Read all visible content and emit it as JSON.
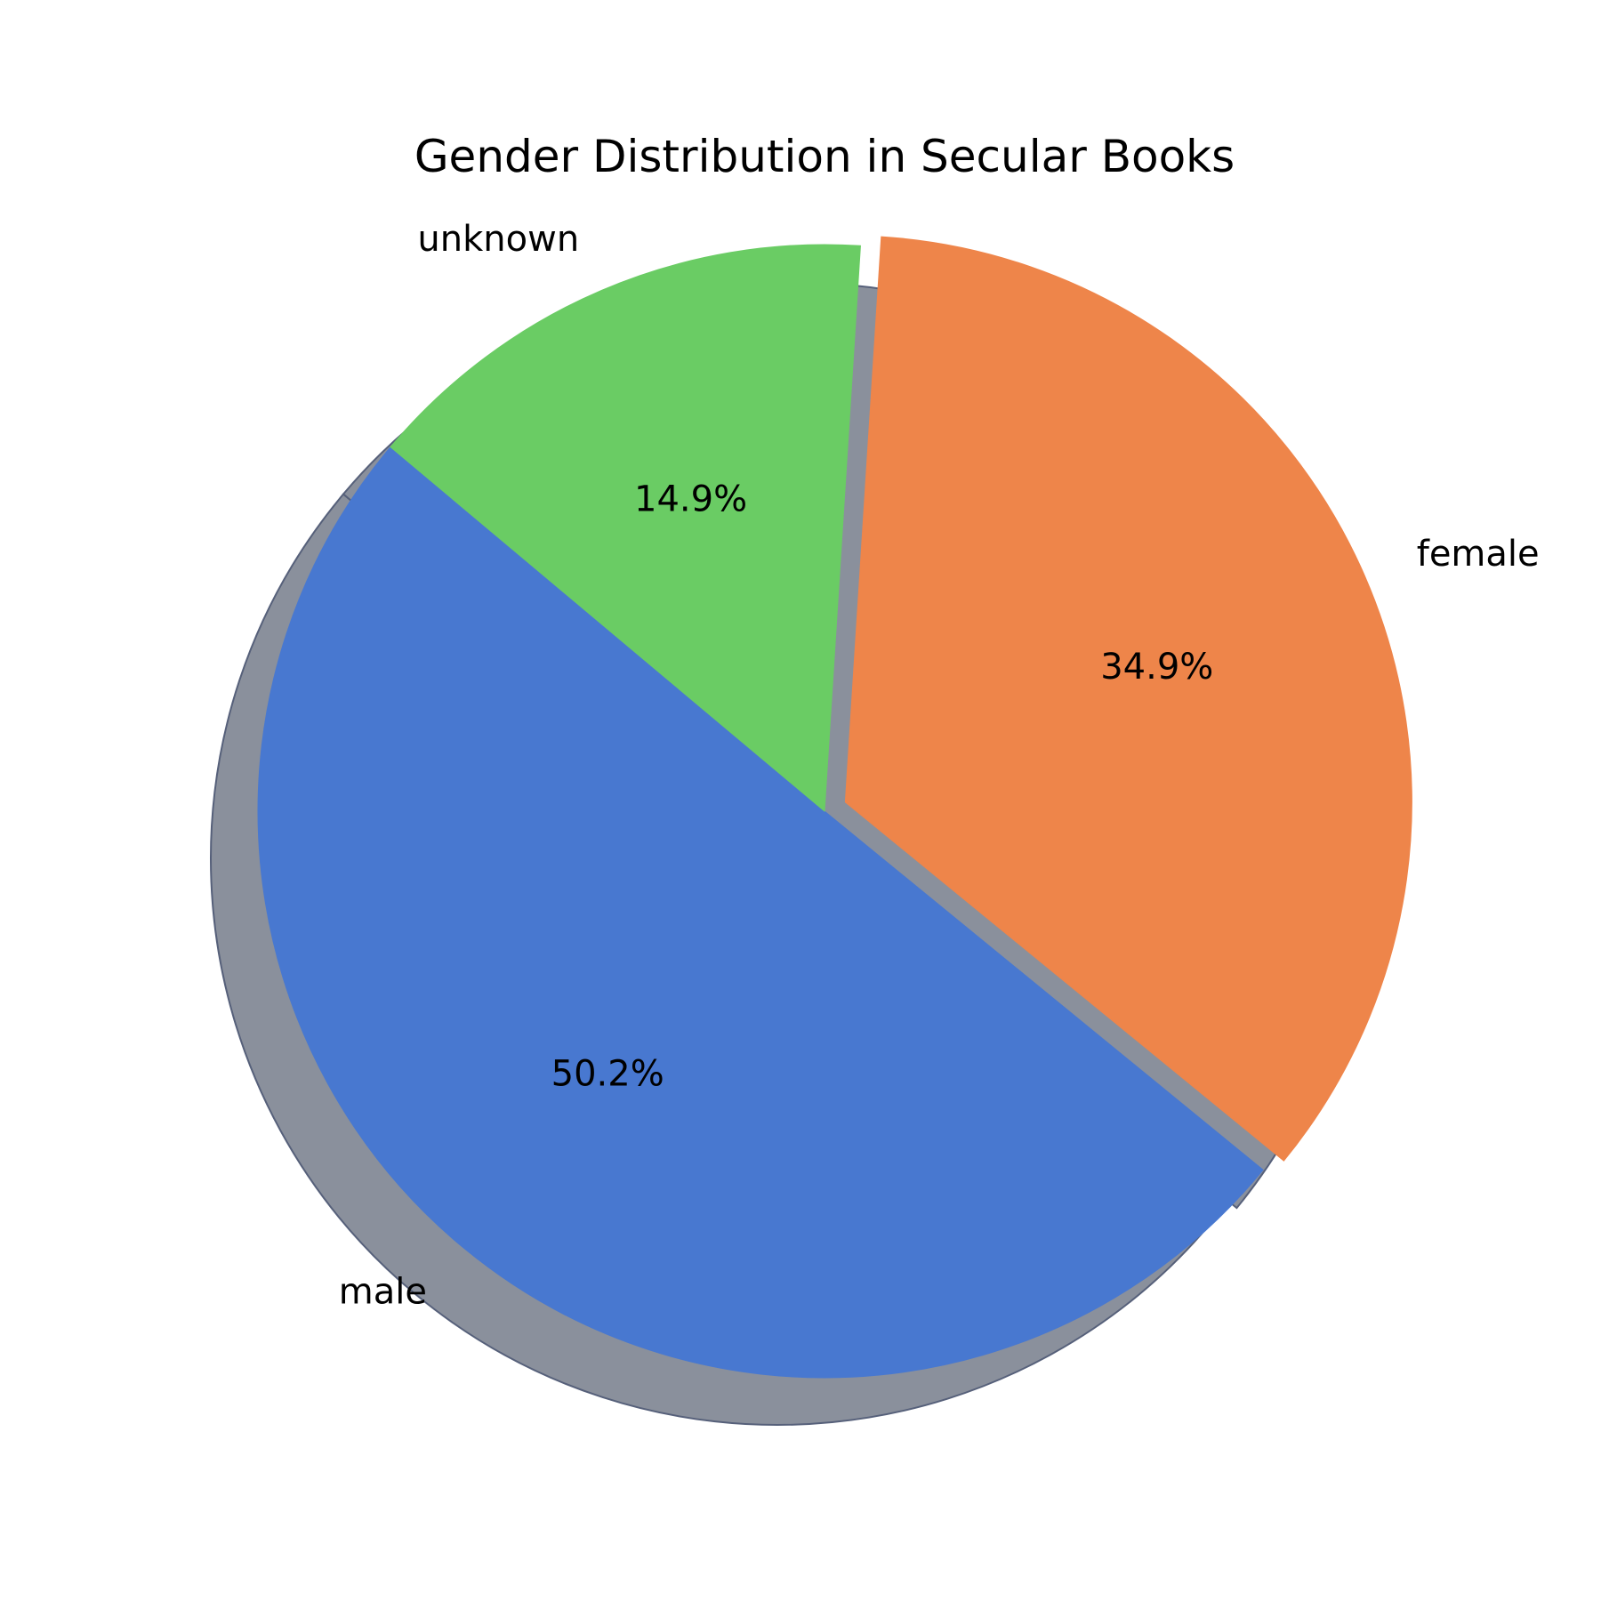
{
  "chart_data": {
    "type": "pie",
    "title": "Gender Distribution in Secular Books",
    "slices": [
      {
        "label": "male",
        "value": 50.2,
        "pct_label": "50.2%",
        "color": "#4878d0",
        "explode": 0.0
      },
      {
        "label": "female",
        "value": 34.9,
        "pct_label": "34.9%",
        "color": "#ee854a",
        "explode": 0.04
      },
      {
        "label": "unknown",
        "value": 14.9,
        "pct_label": "14.9%",
        "color": "#6acc64",
        "explode": 0.0
      }
    ],
    "start_angle": 140,
    "direction": "counterclockwise",
    "shadow": true,
    "shadow_color": "#8a909c"
  }
}
